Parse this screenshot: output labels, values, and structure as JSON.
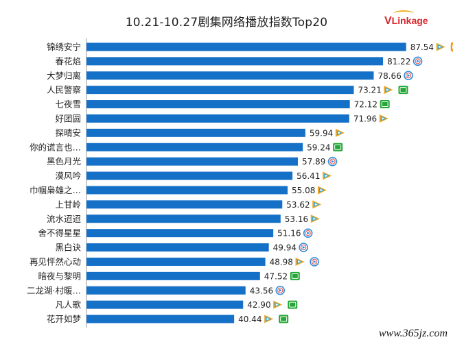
{
  "page": {
    "watermark": "www.365jz.com"
  },
  "logo": {
    "initial": "V",
    "rest": "Linkage"
  },
  "colors": {
    "bar": "#1570c7",
    "axis": "#9a9a9a",
    "label": "#222222",
    "tencent_icon": "#f2a51f",
    "iqiyi_icon": "#25a737",
    "youku_icon": "#2d8fe0",
    "mango_icon": "#f39a22"
  },
  "chart_data": {
    "type": "bar",
    "orientation": "horizontal",
    "title": "10.21-10.27剧集网络播放指数Top20",
    "xlim": [
      0,
      100
    ],
    "grid": false,
    "categories": [
      "锦绣安宁",
      "春花焰",
      "大梦归离",
      "人民警察",
      "七夜雪",
      "好团圆",
      "探晴安",
      "你的谎言也…",
      "黑色月光",
      "漠风吟",
      "巾帼枭雄之…",
      "上甘岭",
      "流水迢迢",
      "舍不得星星",
      "黑白诀",
      "再见怦然心动",
      "暗夜与黎明",
      "二龙湖·村暖…",
      "凡人歌",
      "花开如梦"
    ],
    "values": [
      87.54,
      81.22,
      78.66,
      73.21,
      72.12,
      71.96,
      59.94,
      59.24,
      57.89,
      56.41,
      55.08,
      53.62,
      53.16,
      51.16,
      49.94,
      48.98,
      47.52,
      43.56,
      42.9,
      40.44
    ],
    "value_labels": [
      "87.54",
      "81.22",
      "78.66",
      "73.21",
      "72.12",
      "71.96",
      "59.94",
      "59.24",
      "57.89",
      "56.41",
      "55.08",
      "53.62",
      "53.16",
      "51.16",
      "49.94",
      "48.98",
      "47.52",
      "43.56",
      "42.90",
      "40.44"
    ],
    "platform_icons": [
      [
        "tencent-video-icon",
        "mango-tv-icon"
      ],
      [
        "youku-icon"
      ],
      [
        "youku-icon"
      ],
      [
        "tencent-video-icon",
        "iqiyi-icon"
      ],
      [
        "iqiyi-icon"
      ],
      [
        "tencent-video-icon"
      ],
      [
        "tencent-video-icon"
      ],
      [
        "iqiyi-icon"
      ],
      [
        "youku-icon"
      ],
      [
        "tencent-video-icon"
      ],
      [
        "tencent-video-icon"
      ],
      [
        "tencent-video-icon"
      ],
      [
        "tencent-video-icon"
      ],
      [
        "youku-icon"
      ],
      [
        "youku-icon"
      ],
      [
        "tencent-video-icon",
        "youku-icon"
      ],
      [
        "iqiyi-icon"
      ],
      [
        "youku-icon"
      ],
      [
        "tencent-video-icon",
        "iqiyi-icon"
      ],
      [
        "tencent-video-icon",
        "iqiyi-icon"
      ]
    ]
  }
}
